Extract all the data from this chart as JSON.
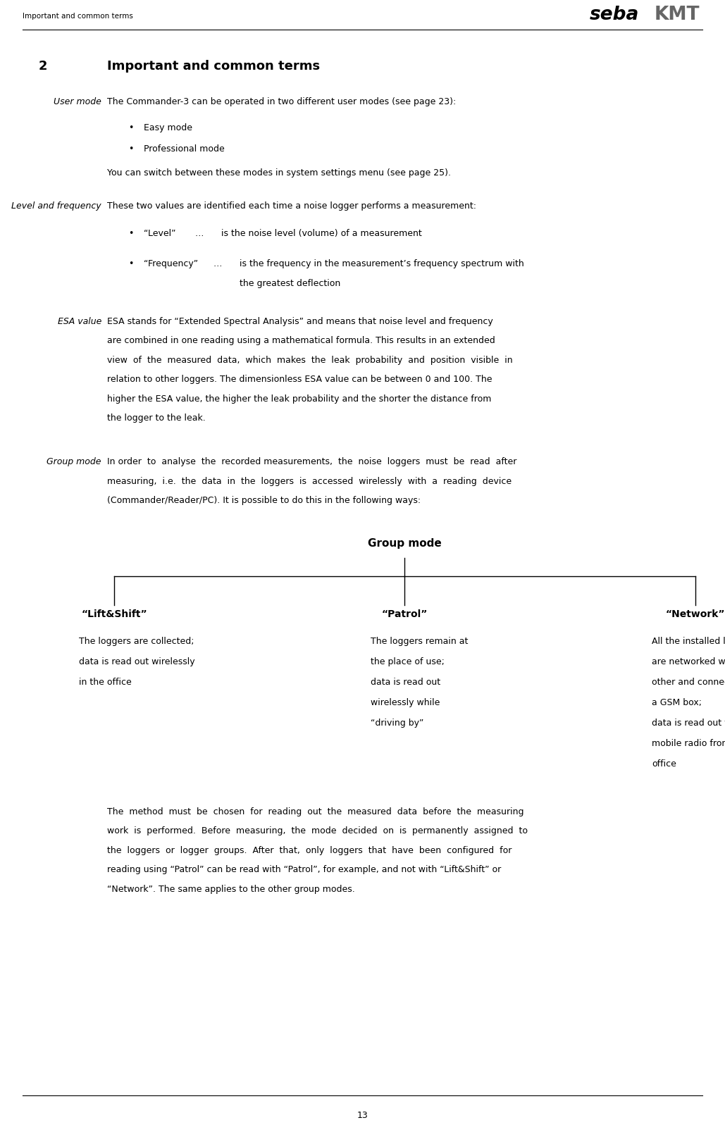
{
  "page_number": "13",
  "header_left": "Important and common terms",
  "chapter_number": "2",
  "chapter_title": "Important and common terms",
  "section1_label": "User mode",
  "section1_text1": "The Commander-3 can be operated in two different user modes (see page 23):",
  "section1_bullets": [
    "Easy mode",
    "Professional mode"
  ],
  "section1_text2": "You can switch between these modes in system settings menu (see page 25).",
  "section2_label": "Level and frequency",
  "section2_text1": "These two values are identified each time a noise logger performs a measurement:",
  "section2_bullet1_bold": "“Level”",
  "section2_bullet1_dots": "…",
  "section2_bullet1_text": "is the noise level (volume) of a measurement",
  "section2_bullet2_bold": "“Frequency”",
  "section2_bullet2_dots": "…",
  "section2_bullet2_text1": "is the frequency in the measurement’s frequency spectrum with",
  "section2_bullet2_text2": "the greatest deflection",
  "section3_label": "ESA value",
  "section3_lines": [
    "ESA stands for “Extended Spectral Analysis” and means that noise level and frequency",
    "are combined in one reading using a mathematical formula. This results in an extended",
    "view  of  the  measured  data,  which  makes  the  leak  probability  and  position  visible  in",
    "relation to other loggers. The dimensionless ESA value can be between 0 and 100. The",
    "higher the ESA value, the higher the leak probability and the shorter the distance from",
    "the logger to the leak."
  ],
  "section4_label": "Group mode",
  "section4_lines": [
    "In order  to  analyse  the  recorded measurements,  the  noise  loggers  must  be  read  after",
    "measuring,  i.e.  the  data  in  the  loggers  is  accessed  wirelessly  with  a  reading  device",
    "(Commander/Reader/PC). It is possible to do this in the following ways:"
  ],
  "diagram_title": "Group mode",
  "diagram_nodes": [
    "“Lift&Shift”",
    "“Patrol”",
    "“Network”"
  ],
  "diagram_text1": [
    "The loggers are collected;",
    "data is read out wirelessly",
    "in the office"
  ],
  "diagram_text2": [
    "The loggers remain at",
    "the place of use;",
    "data is read out",
    "wirelessly while",
    "“driving by”"
  ],
  "diagram_text3": [
    "All the installed loggers",
    "are networked with each",
    "other and connected to",
    "a GSM box;",
    "data is read out via",
    "mobile radio from the",
    "office"
  ],
  "footer_lines": [
    "The  method  must  be  chosen  for  reading  out  the  measured  data  before  the  measuring",
    "work  is  performed.  Before  measuring,  the  mode  decided  on  is  permanently  assigned  to",
    "the  loggers  or  logger  groups.  After  that,  only  loggers  that  have  been  configured  for",
    "reading using “Patrol” can be read with “Patrol”, for example, and not with “Lift&Shift” or",
    "“Network”. The same applies to the other group modes."
  ],
  "bg_color": "#ffffff"
}
